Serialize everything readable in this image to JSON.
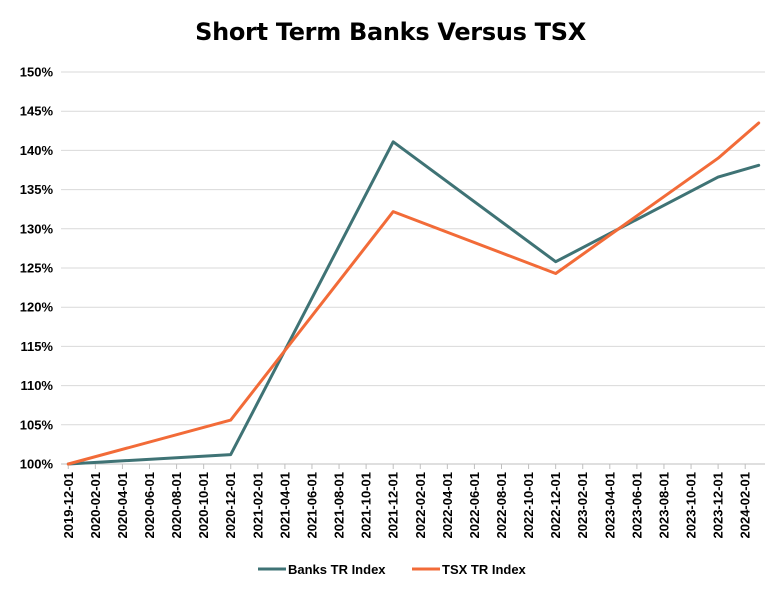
{
  "chart_data": {
    "type": "line",
    "title": "Short Term Banks Versus TSX",
    "xlabel": "",
    "ylabel": "",
    "ylim": [
      100,
      150
    ],
    "ytick_step": 5,
    "y_unit": "%",
    "grid": true,
    "legend_position": "bottom",
    "x_dates": [
      "2019-12-01",
      "2020-02-01",
      "2020-04-01",
      "2020-06-01",
      "2020-08-01",
      "2020-10-01",
      "2020-12-01",
      "2021-02-01",
      "2021-04-01",
      "2021-06-01",
      "2021-08-01",
      "2021-10-01",
      "2021-12-01",
      "2022-02-01",
      "2022-04-01",
      "2022-06-01",
      "2022-08-01",
      "2022-10-01",
      "2022-12-01",
      "2023-02-01",
      "2023-04-01",
      "2023-06-01",
      "2023-08-01",
      "2023-10-01",
      "2023-12-01",
      "2024-02-01"
    ],
    "x_last": "2024-03-01",
    "series": [
      {
        "name": "Banks TR Index",
        "color": "#3f7375",
        "points": [
          [
            "2019-12-01",
            100
          ],
          [
            "2020-12-01",
            101.2
          ],
          [
            "2021-12-01",
            141.1
          ],
          [
            "2022-12-01",
            125.8
          ],
          [
            "2023-12-01",
            136.6
          ],
          [
            "2024-03-01",
            138.1
          ]
        ]
      },
      {
        "name": "TSX TR Index",
        "color": "#f26b38",
        "points": [
          [
            "2019-12-01",
            100
          ],
          [
            "2020-12-01",
            105.6
          ],
          [
            "2021-12-01",
            132.2
          ],
          [
            "2022-12-01",
            124.3
          ],
          [
            "2023-12-01",
            139.0
          ],
          [
            "2024-03-01",
            143.5
          ]
        ]
      }
    ]
  }
}
